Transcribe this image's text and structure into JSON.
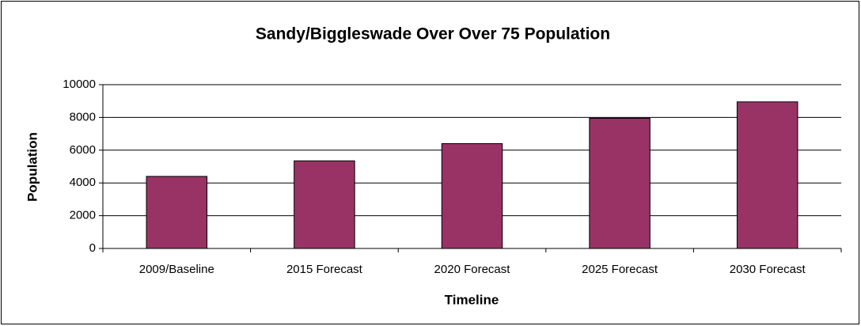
{
  "chart_data": {
    "type": "bar",
    "title": "Sandy/Biggleswade Over Over 75 Population",
    "x_label": "Timeline",
    "y_label": "Population",
    "categories": [
      "2009/Baseline",
      "2015 Forecast",
      "2020 Forecast",
      "2025 Forecast",
      "2030 Forecast"
    ],
    "values": [
      4400,
      5350,
      6400,
      7950,
      8950
    ],
    "color": "#993366",
    "ylim": [
      0,
      10000
    ],
    "yticks": [
      0,
      2000,
      4000,
      6000,
      8000,
      10000
    ],
    "grid": true
  }
}
